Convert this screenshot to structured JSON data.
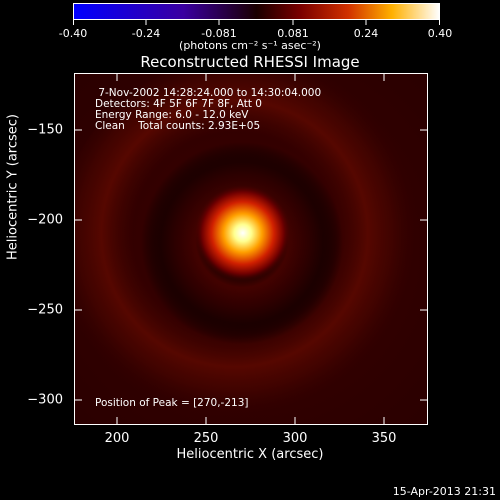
{
  "colorbar": {
    "ticks": [
      "-0.40",
      "-0.24",
      "-0.081",
      "0.081",
      "0.24",
      "0.40"
    ],
    "units": "(photons cm⁻² s⁻¹ asec⁻²)"
  },
  "title": "Reconstructed RHESSI Image",
  "axes": {
    "xlabel": "Heliocentric X (arcsec)",
    "ylabel": "Heliocentric Y (arcsec)",
    "xticks": [
      "200",
      "250",
      "300",
      "350"
    ],
    "yticks": [
      "−150",
      "−200",
      "−250",
      "−300"
    ],
    "xlim": [
      177,
      372
    ],
    "ylim": [
      -315,
      -128
    ]
  },
  "annotation": {
    "line1": " 7-Nov-2002 14:28:24.000 to 14:30:04.000",
    "line2": "Detectors: 4F 5F 6F 7F 8F, Att 0",
    "line3": "Energy Range: 6.0 - 12.0 keV",
    "line4": "Clean    Total counts: 2.93E+05",
    "peak": "Position of Peak = [270,-213]"
  },
  "source": {
    "x": 270,
    "y": -213
  },
  "timestamp": "15-Apr-2013 21:31"
}
